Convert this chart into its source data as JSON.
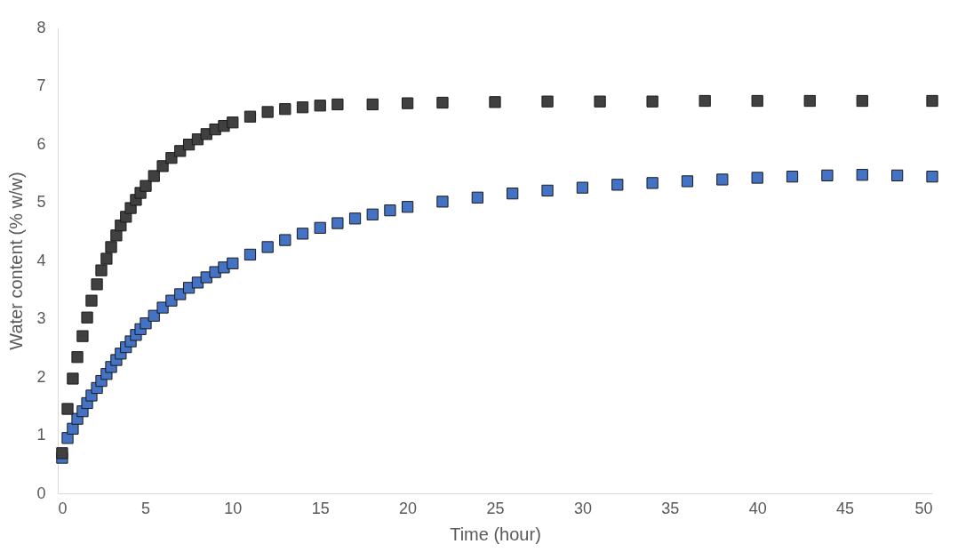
{
  "chart_data": {
    "type": "scatter",
    "xlabel": "Time (hour)",
    "ylabel": "Water content (% w/w)",
    "xlim": [
      0,
      50
    ],
    "ylim": [
      0,
      8
    ],
    "xticks": [
      0,
      5,
      10,
      15,
      20,
      25,
      30,
      35,
      40,
      45,
      50
    ],
    "yticks": [
      0,
      1,
      2,
      3,
      4,
      5,
      6,
      7,
      8
    ],
    "grid": false,
    "marker": "square",
    "series": [
      {
        "color": "#404040",
        "x": [
          0.25,
          0.56,
          0.86,
          1.12,
          1.42,
          1.68,
          1.93,
          2.24,
          2.49,
          2.79,
          3.05,
          3.35,
          3.6,
          3.9,
          4.17,
          4.47,
          4.73,
          5.03,
          5.5,
          6,
          6.5,
          7,
          7.5,
          8,
          8.5,
          9,
          9.5,
          10,
          11,
          12,
          13,
          14,
          15,
          16,
          18,
          20,
          22,
          25,
          28,
          31,
          34,
          37,
          40,
          43,
          46,
          50
        ],
        "values": [
          0.69,
          1.45,
          1.97,
          2.34,
          2.7,
          3.02,
          3.31,
          3.59,
          3.83,
          4.03,
          4.23,
          4.43,
          4.6,
          4.75,
          4.9,
          5.04,
          5.16,
          5.28,
          5.45,
          5.62,
          5.76,
          5.88,
          5.99,
          6.08,
          6.17,
          6.25,
          6.31,
          6.37,
          6.47,
          6.55,
          6.6,
          6.63,
          6.66,
          6.68,
          6.68,
          6.7,
          6.71,
          6.72,
          6.73,
          6.73,
          6.73,
          6.74,
          6.74,
          6.74,
          6.74,
          6.74
        ]
      },
      {
        "color": "#4472c4",
        "x": [
          0.25,
          0.56,
          0.86,
          1.12,
          1.42,
          1.68,
          1.93,
          2.24,
          2.49,
          2.79,
          3.05,
          3.35,
          3.6,
          3.9,
          4.17,
          4.47,
          4.73,
          5.03,
          5.5,
          6,
          6.5,
          7,
          7.5,
          8,
          8.5,
          9,
          9.5,
          10,
          11,
          12,
          13,
          14,
          15,
          16,
          17,
          18,
          19,
          20,
          22,
          24,
          26,
          28,
          30,
          32,
          34,
          36,
          38,
          40,
          42,
          44,
          46,
          48,
          50
        ],
        "values": [
          0.61,
          0.95,
          1.11,
          1.28,
          1.41,
          1.55,
          1.68,
          1.81,
          1.93,
          2.05,
          2.17,
          2.29,
          2.4,
          2.51,
          2.61,
          2.72,
          2.82,
          2.92,
          3.05,
          3.19,
          3.31,
          3.42,
          3.53,
          3.62,
          3.71,
          3.8,
          3.88,
          3.95,
          4.1,
          4.23,
          4.35,
          4.46,
          4.56,
          4.64,
          4.72,
          4.79,
          4.86,
          4.92,
          5.01,
          5.08,
          5.15,
          5.2,
          5.25,
          5.3,
          5.33,
          5.36,
          5.39,
          5.42,
          5.44,
          5.46,
          5.47,
          5.46,
          5.44
        ]
      }
    ]
  }
}
